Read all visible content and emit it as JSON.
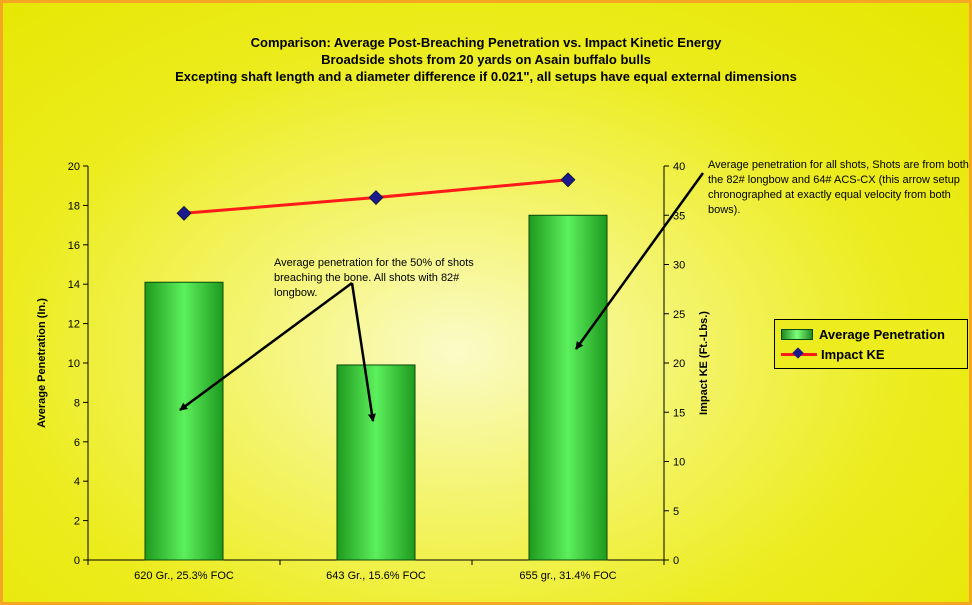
{
  "chart_data": {
    "type": "bar",
    "title_lines": [
      "Comparison: Average Post-Breaching Penetration vs. Impact Kinetic Energy",
      "Broadside shots from 20 yards on Asain buffalo bulls",
      "Excepting shaft length and a diameter difference if 0.021\", all setups have equal external dimensions"
    ],
    "categories": [
      "620 Gr., 25.3% FOC",
      "643 Gr., 15.6% FOC",
      "655 gr., 31.4% FOC"
    ],
    "ylabel": "Average Penetration (In.)",
    "y2label": "Impact KE (Ft.-Lbs.)",
    "ylim": [
      0,
      20
    ],
    "y2lim": [
      0,
      40
    ],
    "yticks": [
      "0",
      "2",
      "4",
      "6",
      "8",
      "10",
      "12",
      "14",
      "16",
      "18",
      "20"
    ],
    "y2ticks": [
      "0",
      "5",
      "10",
      "15",
      "20",
      "25",
      "30",
      "35",
      "40"
    ],
    "series": [
      {
        "name": "Average Penetration",
        "kind": "bar",
        "axis": "left",
        "values": [
          14.1,
          9.9,
          17.5
        ],
        "color": "#22cc22"
      },
      {
        "name": "Impact KE",
        "kind": "line",
        "axis": "right",
        "values": [
          35.2,
          36.8,
          38.6
        ],
        "color": "#ff1a1a",
        "marker_color": "#1a1a8c"
      }
    ],
    "legend_position": "right",
    "annotations": [
      "Average penetration for the 50% of shots breaching the bone. All shots with 82# longbow.",
      "Average penetration for all shots, Shots are from both the 82# longbow and 64# ACS-CX (this arrow setup chronographed at exactly equal velocity from both bows)."
    ]
  },
  "colors": {
    "background": "#e6e600",
    "border": "#f5a623",
    "arrow": "#000000"
  }
}
